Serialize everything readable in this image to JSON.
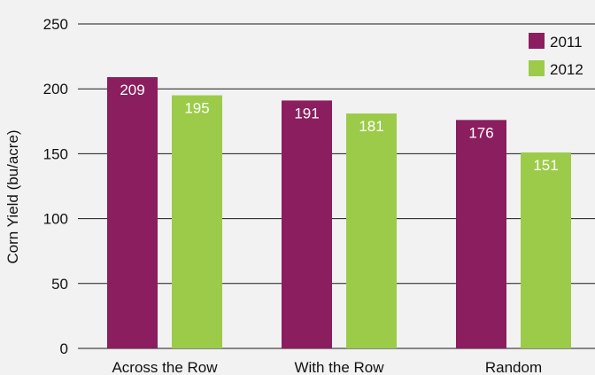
{
  "chart_data": {
    "type": "bar",
    "categories": [
      "Across the Row",
      "With the Row",
      "Random"
    ],
    "series": [
      {
        "name": "2011",
        "values": [
          209,
          191,
          176
        ],
        "color": "#8b1e5f"
      },
      {
        "name": "2012",
        "values": [
          195,
          181,
          151
        ],
        "color": "#9ccb4a"
      }
    ],
    "data_labels": [
      [
        "209",
        "195"
      ],
      [
        "191",
        "181"
      ],
      [
        "176",
        "151"
      ]
    ],
    "ylabel": "Corn Yield (bu/acre)",
    "xlabel": "",
    "ylim": [
      0,
      250
    ],
    "yticks": [
      "0",
      "50",
      "100",
      "150",
      "200",
      "250"
    ],
    "grid": true,
    "legend_position": "top-right"
  }
}
